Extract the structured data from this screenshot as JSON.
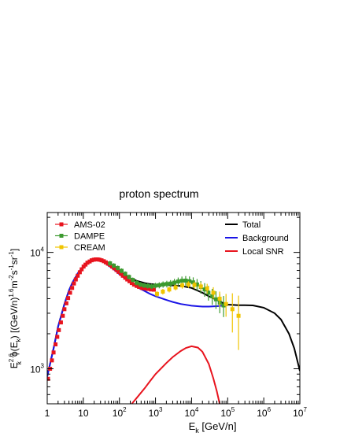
{
  "chart_data": {
    "type": "line",
    "title": "proton spectrum",
    "xlabel": {
      "base": "E",
      "sub": "k",
      "rest": " [GeV/n]"
    },
    "ylabel": "E_k^{2.6} ϕ(E_k) [(GeV/n)^{1.6} m^{-2} s^{-1} sr^{-1}]",
    "ylabel_parts": {
      "E": "E",
      "sup26": "2.6",
      "subk": "k",
      "phi": "ϕ(E",
      "subk2": "k",
      "bracket": ") [(GeV/n)",
      "sup16": "1.6",
      "rest": "m",
      "exp2": "-2",
      "s": "s",
      "exp1": "-1",
      "sr": "sr",
      "exp1b": "-1",
      "close": "]"
    },
    "x_scale": "log",
    "y_scale": "log",
    "xlim": [
      1,
      10000000
    ],
    "ylim": [
      500,
      22000
    ],
    "x_ticks": [
      {
        "v": 1,
        "base": "1",
        "exp": ""
      },
      {
        "v": 10,
        "base": "10",
        "exp": ""
      },
      {
        "v": 100,
        "base": "10",
        "exp": "2"
      },
      {
        "v": 1000,
        "base": "10",
        "exp": "3"
      },
      {
        "v": 10000,
        "base": "10",
        "exp": "4"
      },
      {
        "v": 100000,
        "base": "10",
        "exp": "5"
      },
      {
        "v": 1000000,
        "base": "10",
        "exp": "6"
      },
      {
        "v": 10000000,
        "base": "10",
        "exp": "7"
      }
    ],
    "y_ticks": [
      {
        "v": 1000,
        "base": "10",
        "exp": "3"
      },
      {
        "v": 10000,
        "base": "10",
        "exp": "4"
      }
    ],
    "legend_left": [
      {
        "name": "AMS-02",
        "color": "#e8141e",
        "marker": "square"
      },
      {
        "name": "DAMPE",
        "color": "#3c9a2f",
        "marker": "square"
      },
      {
        "name": "CREAM",
        "color": "#f0c400",
        "marker": "square"
      }
    ],
    "legend_right": [
      {
        "name": "Total",
        "color": "#000000"
      },
      {
        "name": "Background",
        "color": "#1a14e6"
      },
      {
        "name": "Local SNR",
        "color": "#e8141e"
      }
    ],
    "series": [
      {
        "name": "Total",
        "color": "#000000",
        "kind": "line",
        "x": [
          1,
          1.2,
          1.5,
          2,
          3,
          4,
          5,
          7,
          10,
          15,
          20,
          25,
          30,
          40,
          50,
          70,
          100,
          150,
          200,
          300,
          500,
          700,
          1000,
          2000,
          3000,
          5000,
          10000,
          20000,
          30000,
          50000,
          70000,
          100000,
          200000,
          300000,
          500000,
          1000000,
          2000000,
          3000000,
          5000000,
          7000000,
          10000000
        ],
        "y": [
          860,
          1100,
          1500,
          2300,
          3600,
          4700,
          5500,
          6600,
          7600,
          8400,
          8700,
          8750,
          8600,
          8200,
          7800,
          7300,
          6800,
          6300,
          6000,
          5700,
          5450,
          5350,
          5300,
          5250,
          5200,
          5150,
          4950,
          4500,
          4200,
          3900,
          3700,
          3560,
          3520,
          3520,
          3500,
          3350,
          3000,
          2650,
          2000,
          1500,
          960
        ]
      },
      {
        "name": "Background",
        "color": "#1a14e6",
        "kind": "line",
        "x": [
          1,
          1.2,
          1.5,
          2,
          3,
          4,
          5,
          7,
          10,
          15,
          20,
          25,
          30,
          40,
          50,
          70,
          100,
          150,
          200,
          300,
          500,
          700,
          1000,
          2000,
          3000,
          5000,
          10000,
          20000,
          30000,
          50000,
          70000,
          100000
        ],
        "y": [
          860,
          1100,
          1500,
          2300,
          3600,
          4700,
          5500,
          6600,
          7600,
          8400,
          8700,
          8750,
          8600,
          8150,
          7700,
          7150,
          6500,
          5900,
          5500,
          5050,
          4650,
          4400,
          4200,
          3900,
          3750,
          3600,
          3480,
          3420,
          3420,
          3450,
          3480,
          3500
        ]
      },
      {
        "name": "Local SNR",
        "color": "#e8141e",
        "kind": "line",
        "x": [
          220,
          300,
          500,
          700,
          1000,
          2000,
          3000,
          5000,
          7000,
          10000,
          15000,
          20000,
          30000,
          40000,
          50000,
          60000
        ],
        "y": [
          500,
          560,
          680,
          780,
          900,
          1120,
          1260,
          1420,
          1510,
          1560,
          1520,
          1400,
          1100,
          830,
          640,
          500
        ]
      },
      {
        "name": "AMS-02",
        "color": "#e8141e",
        "kind": "points",
        "x": [
          1.05,
          1.2,
          1.35,
          1.5,
          1.7,
          1.9,
          2.1,
          2.4,
          2.7,
          3.0,
          3.4,
          3.8,
          4.3,
          4.9,
          5.5,
          6.2,
          7.0,
          8.0,
          9.0,
          10.2,
          11.5,
          13,
          15,
          17,
          19.5,
          22,
          25,
          28,
          32,
          37,
          42,
          48,
          55,
          63,
          72,
          83,
          95,
          110,
          125,
          145,
          165,
          190,
          220,
          255,
          300,
          350,
          420,
          500,
          600,
          750,
          900
        ],
        "y": [
          820,
          1000,
          1180,
          1380,
          1620,
          1880,
          2150,
          2500,
          2850,
          3250,
          3650,
          4050,
          4500,
          4950,
          5400,
          5850,
          6300,
          6750,
          7150,
          7550,
          7850,
          8150,
          8350,
          8550,
          8650,
          8700,
          8700,
          8650,
          8550,
          8400,
          8200,
          8000,
          7800,
          7550,
          7300,
          7050,
          6800,
          6550,
          6300,
          6050,
          5850,
          5650,
          5450,
          5280,
          5150,
          5050,
          4950,
          4900,
          4850,
          4800,
          4780
        ]
      },
      {
        "name": "DAMPE",
        "color": "#3c9a2f",
        "kind": "points",
        "x": [
          55,
          70,
          90,
          115,
          145,
          185,
          235,
          300,
          380,
          480,
          610,
          780,
          1000,
          1270,
          1620,
          2060,
          2620,
          3340,
          4250,
          5400,
          6870,
          8750,
          11100,
          14200,
          18000,
          23000,
          29300,
          37300,
          47400,
          60400,
          76900
        ],
        "y": [
          8050,
          7700,
          7350,
          6950,
          6550,
          6150,
          5800,
          5480,
          5300,
          5200,
          5150,
          5100,
          5180,
          5220,
          5300,
          5350,
          5400,
          5500,
          5620,
          5700,
          5720,
          5650,
          5520,
          5300,
          5050,
          4800,
          4500,
          4200,
          3950,
          3700,
          3500
        ],
        "err": [
          400,
          380,
          360,
          340,
          320,
          300,
          280,
          270,
          260,
          260,
          270,
          280,
          290,
          310,
          330,
          350,
          380,
          420,
          460,
          500,
          540,
          560,
          580,
          600,
          620,
          640,
          650,
          660,
          680,
          700,
          720
        ]
      },
      {
        "name": "CREAM",
        "color": "#f0c400",
        "kind": "points",
        "x": [
          1100,
          1600,
          2400,
          3600,
          5500,
          8200,
          12000,
          18000,
          27000,
          40000,
          60000,
          90000,
          135000,
          200000
        ],
        "y": [
          4400,
          4600,
          4800,
          5000,
          5200,
          5300,
          5250,
          5100,
          4900,
          4500,
          4000,
          3600,
          3250,
          2850
        ],
        "err": [
          250,
          260,
          270,
          290,
          320,
          350,
          380,
          420,
          470,
          520,
          600,
          800,
          1200,
          1400
        ]
      }
    ]
  }
}
